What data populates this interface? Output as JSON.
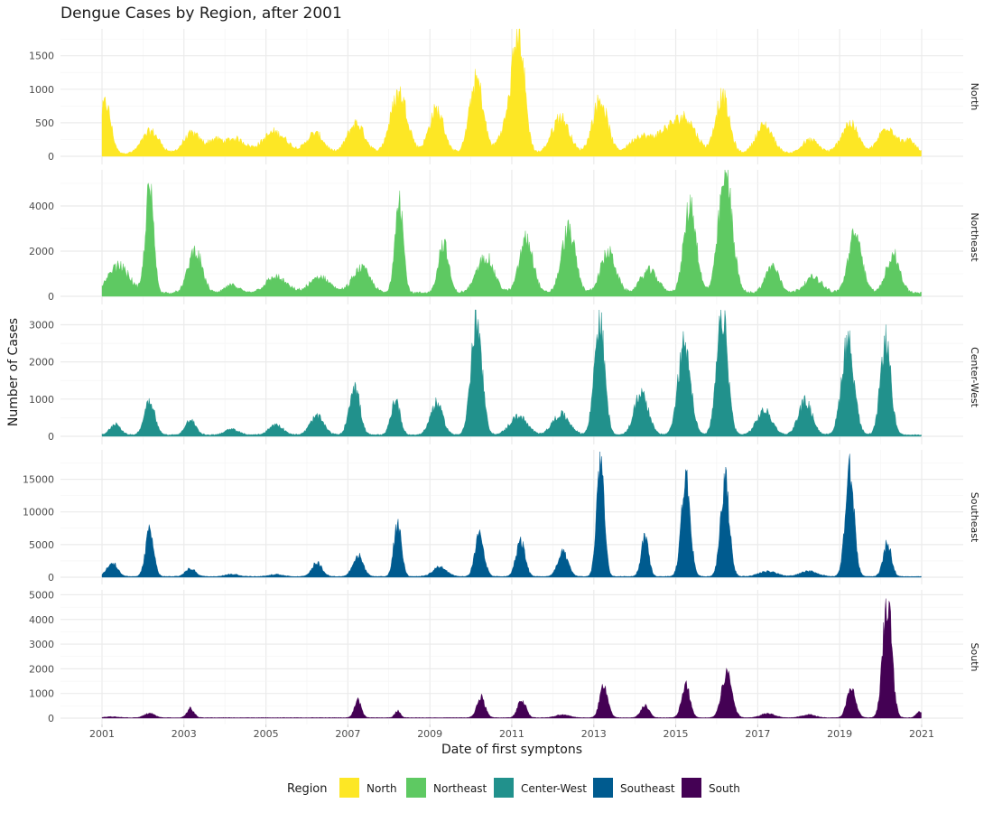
{
  "chart_data": {
    "type": "area",
    "title": "Dengue Cases by Region, after 2001",
    "xlabel": "Date of first symptons",
    "ylabel": "Number of Cases",
    "x_range": [
      "2001-01-01",
      "2021-01-01"
    ],
    "x_ticks": [
      "2001",
      "2003",
      "2005",
      "2007",
      "2009",
      "2011",
      "2013",
      "2015",
      "2017",
      "2019",
      "2021"
    ],
    "grid": true,
    "legend": {
      "title": "Region",
      "position": "bottom"
    },
    "series": [
      {
        "name": "North",
        "color": "#fde725",
        "ylim": [
          0,
          1900
        ],
        "y_ticks": [
          0,
          500,
          1000,
          1500
        ],
        "baseline": 40,
        "peaks": [
          {
            "date": "2001-02-01",
            "peak": 750,
            "width": 1.6
          },
          {
            "date": "2002-03-10",
            "peak": 330,
            "width": 2.5
          },
          {
            "date": "2003-03-15",
            "peak": 300,
            "width": 2.5
          },
          {
            "date": "2003-10-01",
            "peak": 180,
            "width": 2.0
          },
          {
            "date": "2004-04-01",
            "peak": 220,
            "width": 3.0
          },
          {
            "date": "2005-03-20",
            "peak": 320,
            "width": 3.5
          },
          {
            "date": "2006-03-15",
            "peak": 300,
            "width": 2.5
          },
          {
            "date": "2007-03-15",
            "peak": 450,
            "width": 2.5
          },
          {
            "date": "2008-04-01",
            "peak": 900,
            "width": 2.5
          },
          {
            "date": "2009-03-01",
            "peak": 650,
            "width": 2.2
          },
          {
            "date": "2010-02-20",
            "peak": 1100,
            "width": 2.0
          },
          {
            "date": "2010-11-01",
            "peak": 350,
            "width": 2.0
          },
          {
            "date": "2011-03-01",
            "peak": 1800,
            "width": 1.8
          },
          {
            "date": "2012-03-10",
            "peak": 550,
            "width": 2.5
          },
          {
            "date": "2013-02-25",
            "peak": 800,
            "width": 2.2
          },
          {
            "date": "2014-02-15",
            "peak": 250,
            "width": 3.0
          },
          {
            "date": "2014-10-01",
            "peak": 300,
            "width": 3.0
          },
          {
            "date": "2015-04-01",
            "peak": 500,
            "width": 3.0
          },
          {
            "date": "2016-02-20",
            "peak": 850,
            "width": 2.0
          },
          {
            "date": "2017-03-01",
            "peak": 420,
            "width": 2.5
          },
          {
            "date": "2018-04-15",
            "peak": 200,
            "width": 2.5
          },
          {
            "date": "2019-04-01",
            "peak": 450,
            "width": 2.5
          },
          {
            "date": "2020-03-01",
            "peak": 400,
            "width": 2.5
          },
          {
            "date": "2020-09-15",
            "peak": 180,
            "width": 2.0
          }
        ]
      },
      {
        "name": "Northeast",
        "color": "#5ec962",
        "ylim": [
          0,
          5600
        ],
        "y_ticks": [
          0,
          2000,
          4000
        ],
        "baseline": 150,
        "peaks": [
          {
            "date": "2001-06-01",
            "peak": 1200,
            "width": 3.0
          },
          {
            "date": "2002-03-01",
            "peak": 4600,
            "width": 1.2
          },
          {
            "date": "2003-04-10",
            "peak": 1900,
            "width": 2.0
          },
          {
            "date": "2004-03-01",
            "peak": 350,
            "width": 2.0
          },
          {
            "date": "2005-04-01",
            "peak": 700,
            "width": 3.0
          },
          {
            "date": "2006-05-01",
            "peak": 700,
            "width": 3.0
          },
          {
            "date": "2007-05-01",
            "peak": 1100,
            "width": 2.5
          },
          {
            "date": "2008-04-01",
            "peak": 4400,
            "width": 1.2
          },
          {
            "date": "2009-05-01",
            "peak": 2200,
            "width": 1.5
          },
          {
            "date": "2010-05-10",
            "peak": 1600,
            "width": 2.5
          },
          {
            "date": "2011-05-10",
            "peak": 2400,
            "width": 2.0
          },
          {
            "date": "2012-05-20",
            "peak": 2800,
            "width": 2.0
          },
          {
            "date": "2013-05-10",
            "peak": 1800,
            "width": 2.2
          },
          {
            "date": "2014-05-10",
            "peak": 1000,
            "width": 2.5
          },
          {
            "date": "2015-05-10",
            "peak": 3900,
            "width": 1.8
          },
          {
            "date": "2016-03-20",
            "peak": 5200,
            "width": 2.0
          },
          {
            "date": "2017-05-10",
            "peak": 1200,
            "width": 2.0
          },
          {
            "date": "2018-05-10",
            "peak": 700,
            "width": 2.5
          },
          {
            "date": "2019-05-20",
            "peak": 2600,
            "width": 2.0
          },
          {
            "date": "2020-04-20",
            "peak": 1700,
            "width": 2.0
          }
        ]
      },
      {
        "name": "Center-West",
        "color": "#21918c",
        "ylim": [
          0,
          3400
        ],
        "y_ticks": [
          0,
          1000,
          2000,
          3000
        ],
        "baseline": 40,
        "peaks": [
          {
            "date": "2001-05-01",
            "peak": 300,
            "width": 1.5
          },
          {
            "date": "2002-03-01",
            "peak": 950,
            "width": 1.5
          },
          {
            "date": "2003-03-01",
            "peak": 400,
            "width": 1.5
          },
          {
            "date": "2004-03-01",
            "peak": 150,
            "width": 2.0
          },
          {
            "date": "2005-04-01",
            "peak": 280,
            "width": 2.0
          },
          {
            "date": "2006-04-01",
            "peak": 500,
            "width": 2.0
          },
          {
            "date": "2007-03-01",
            "peak": 1350,
            "width": 1.5
          },
          {
            "date": "2008-03-01",
            "peak": 950,
            "width": 1.3
          },
          {
            "date": "2009-03-01",
            "peak": 850,
            "width": 1.8
          },
          {
            "date": "2010-02-20",
            "peak": 3000,
            "width": 1.6
          },
          {
            "date": "2011-03-01",
            "peak": 500,
            "width": 2.5
          },
          {
            "date": "2012-03-15",
            "peak": 550,
            "width": 2.5
          },
          {
            "date": "2013-02-20",
            "peak": 3100,
            "width": 1.5
          },
          {
            "date": "2014-03-01",
            "peak": 1150,
            "width": 2.0
          },
          {
            "date": "2015-03-20",
            "peak": 2500,
            "width": 1.8
          },
          {
            "date": "2016-02-20",
            "peak": 3200,
            "width": 1.6
          },
          {
            "date": "2017-03-01",
            "peak": 650,
            "width": 2.2
          },
          {
            "date": "2018-03-01",
            "peak": 900,
            "width": 2.0
          },
          {
            "date": "2019-03-15",
            "peak": 2550,
            "width": 1.8
          },
          {
            "date": "2020-02-15",
            "peak": 2550,
            "width": 1.5
          }
        ]
      },
      {
        "name": "Southeast",
        "color": "#005b8f",
        "ylim": [
          0,
          19500
        ],
        "y_ticks": [
          0,
          5000,
          10000,
          15000
        ],
        "baseline": 120,
        "peaks": [
          {
            "date": "2001-04-01",
            "peak": 2200,
            "width": 1.5
          },
          {
            "date": "2002-03-01",
            "peak": 6800,
            "width": 1.2
          },
          {
            "date": "2003-03-01",
            "peak": 1200,
            "width": 1.5
          },
          {
            "date": "2004-03-01",
            "peak": 350,
            "width": 2.0
          },
          {
            "date": "2005-04-01",
            "peak": 300,
            "width": 2.0
          },
          {
            "date": "2006-04-01",
            "peak": 2100,
            "width": 1.5
          },
          {
            "date": "2007-04-01",
            "peak": 3200,
            "width": 1.5
          },
          {
            "date": "2008-03-20",
            "peak": 8300,
            "width": 1.1
          },
          {
            "date": "2009-04-01",
            "peak": 1500,
            "width": 2.0
          },
          {
            "date": "2010-03-20",
            "peak": 6400,
            "width": 1.3
          },
          {
            "date": "2011-03-20",
            "peak": 5500,
            "width": 1.3
          },
          {
            "date": "2012-04-01",
            "peak": 3600,
            "width": 1.5
          },
          {
            "date": "2013-03-01",
            "peak": 18000,
            "width": 1.1
          },
          {
            "date": "2014-04-01",
            "peak": 5800,
            "width": 1.1
          },
          {
            "date": "2015-04-01",
            "peak": 15000,
            "width": 1.3
          },
          {
            "date": "2016-03-15",
            "peak": 14700,
            "width": 1.3
          },
          {
            "date": "2017-04-01",
            "peak": 800,
            "width": 2.5
          },
          {
            "date": "2018-04-01",
            "peak": 800,
            "width": 2.5
          },
          {
            "date": "2019-04-01",
            "peak": 16000,
            "width": 1.3
          },
          {
            "date": "2020-03-01",
            "peak": 5000,
            "width": 1.2
          }
        ]
      },
      {
        "name": "South",
        "color": "#440154",
        "ylim": [
          0,
          5200
        ],
        "y_ticks": [
          0,
          1000,
          2000,
          3000,
          4000,
          5000
        ],
        "baseline": 20,
        "peaks": [
          {
            "date": "2001-04-01",
            "peak": 40,
            "width": 2.0
          },
          {
            "date": "2002-03-01",
            "peak": 180,
            "width": 1.5
          },
          {
            "date": "2003-03-01",
            "peak": 380,
            "width": 1.0
          },
          {
            "date": "2007-04-01",
            "peak": 720,
            "width": 1.0
          },
          {
            "date": "2008-03-20",
            "peak": 280,
            "width": 0.8
          },
          {
            "date": "2010-04-01",
            "peak": 820,
            "width": 1.2
          },
          {
            "date": "2011-04-01",
            "peak": 720,
            "width": 1.2
          },
          {
            "date": "2012-04-01",
            "peak": 120,
            "width": 2.0
          },
          {
            "date": "2013-04-01",
            "peak": 1300,
            "width": 1.2
          },
          {
            "date": "2014-04-01",
            "peak": 500,
            "width": 1.2
          },
          {
            "date": "2015-04-01",
            "peak": 1300,
            "width": 1.2
          },
          {
            "date": "2016-04-01",
            "peak": 1800,
            "width": 1.5
          },
          {
            "date": "2017-04-01",
            "peak": 180,
            "width": 2.0
          },
          {
            "date": "2018-04-01",
            "peak": 120,
            "width": 2.0
          },
          {
            "date": "2019-04-15",
            "peak": 1150,
            "width": 1.3
          },
          {
            "date": "2020-03-01",
            "peak": 4800,
            "width": 1.3
          },
          {
            "date": "2020-12-15",
            "peak": 250,
            "width": 1.0
          }
        ]
      }
    ]
  }
}
